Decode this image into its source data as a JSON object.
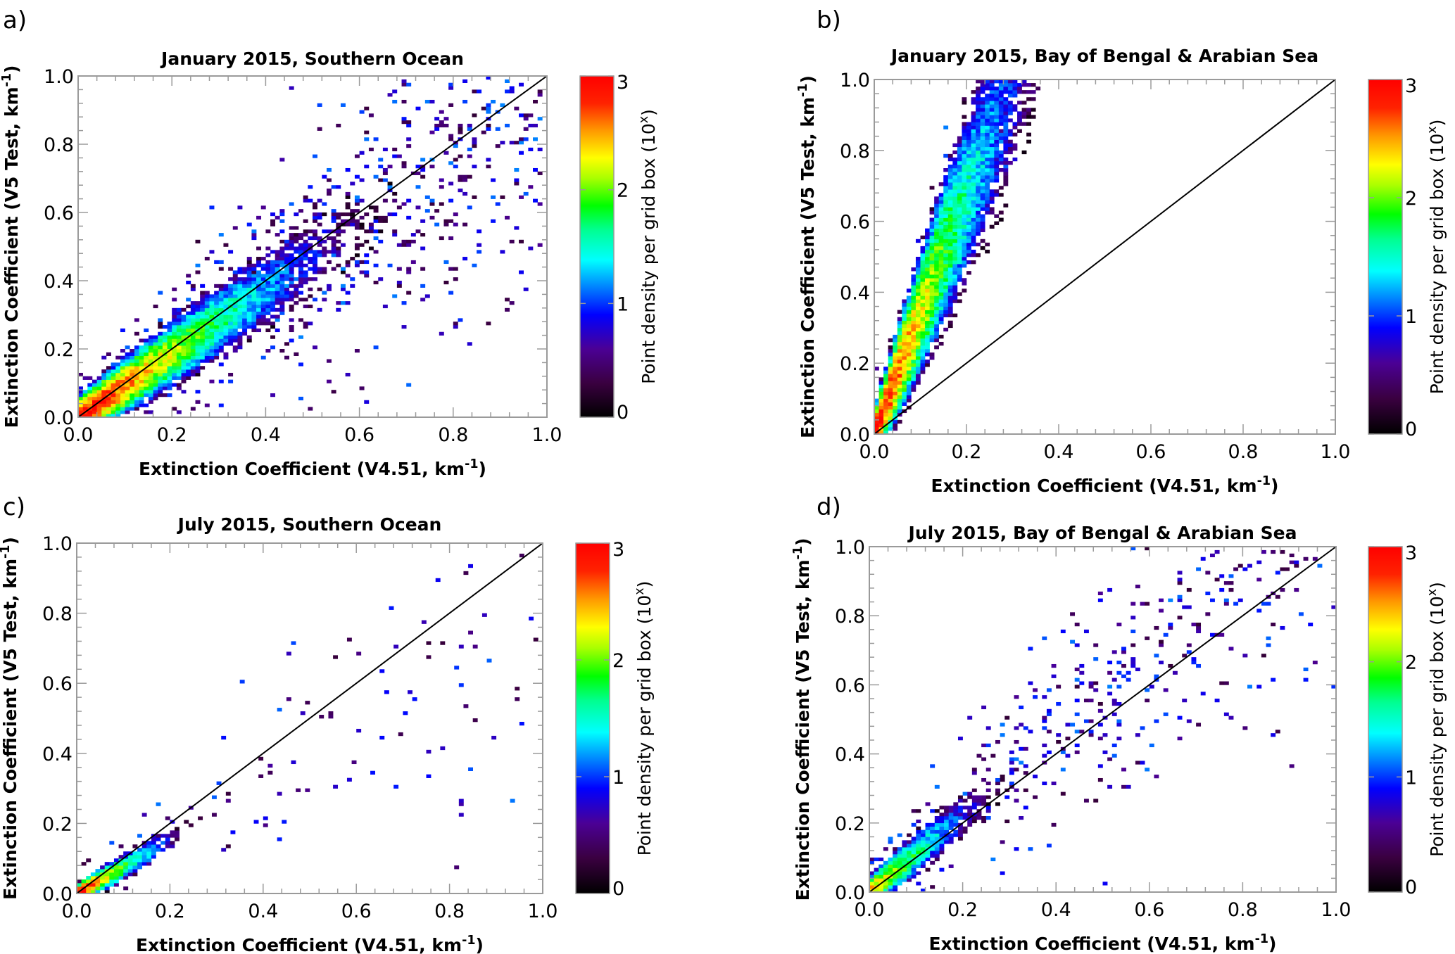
{
  "chart_data": [
    {
      "type": "heatmap",
      "panel_label": "a)",
      "title": "January 2015, Southern Ocean",
      "xlabel": "Extinction Coefficient (V4.51, km",
      "xlabel_sup": "-1",
      "xlabel_tail": ")",
      "ylabel": "Extinction Coefficient  (V5 Test, km",
      "ylabel_sup": "-1",
      "ylabel_tail": ")",
      "xlim": [
        0.0,
        1.0
      ],
      "ylim": [
        0.0,
        1.0
      ],
      "xticks": [
        "0.0",
        "0.2",
        "0.4",
        "0.6",
        "0.8",
        "1.0"
      ],
      "yticks": [
        "0.0",
        "0.2",
        "0.4",
        "0.6",
        "0.8",
        "1.0"
      ],
      "reference_line": "1:1",
      "bins": 100,
      "distribution": {
        "slope": 0.97,
        "spread": 0.045,
        "spread_growth": 0.16,
        "peak_log_density": 3.0,
        "decay": 3.2,
        "x_max": 1.0,
        "outliers": 900,
        "seed": 11
      },
      "colorbar": {
        "label": "Point density per grid box (10",
        "label_sup": "x",
        "label_tail": ")",
        "range": [
          0,
          3
        ],
        "ticks": [
          "0",
          "1",
          "2",
          "3"
        ]
      }
    },
    {
      "type": "heatmap",
      "panel_label": "b)",
      "title": "January 2015, Bay of Bengal & Arabian Sea",
      "xlabel": "Extinction Coefficient (V4.51, km",
      "xlabel_sup": "-1",
      "xlabel_tail": ")",
      "ylabel": "Extinction Coefficient  (V5 Test, km",
      "ylabel_sup": "-1",
      "ylabel_tail": ")",
      "xlim": [
        0.0,
        1.0
      ],
      "ylim": [
        0.0,
        1.0
      ],
      "xticks": [
        "0.0",
        "0.2",
        "0.4",
        "0.6",
        "0.8",
        "1.0"
      ],
      "yticks": [
        "0.0",
        "0.2",
        "0.4",
        "0.6",
        "0.8",
        "1.0"
      ],
      "reference_line": "1:1",
      "bins": 100,
      "distribution": {
        "slope": 3.6,
        "spread": 0.05,
        "spread_growth": 0.38,
        "peak_log_density": 3.0,
        "decay": 2.0,
        "x_max": 0.37,
        "outliers": 380,
        "seed": 23
      },
      "colorbar": {
        "label": "Point density per grid box (10",
        "label_sup": "x",
        "label_tail": ")",
        "range": [
          0,
          3
        ],
        "ticks": [
          "0",
          "1",
          "2",
          "3"
        ]
      }
    },
    {
      "type": "heatmap",
      "panel_label": "c)",
      "title": "July 2015, Southern Ocean",
      "xlabel": "Extinction Coefficient (V4.51, km",
      "xlabel_sup": "-1",
      "xlabel_tail": ")",
      "ylabel": "Extinction Coefficient  (V5 Test, km",
      "ylabel_sup": "-1",
      "ylabel_tail": ")",
      "xlim": [
        0.0,
        1.0
      ],
      "ylim": [
        0.0,
        1.0
      ],
      "xticks": [
        "0.0",
        "0.2",
        "0.4",
        "0.6",
        "0.8",
        "1.0"
      ],
      "yticks": [
        "0.0",
        "0.2",
        "0.4",
        "0.6",
        "0.8",
        "1.0"
      ],
      "reference_line": "1:1",
      "bins": 100,
      "distribution": {
        "slope": 0.78,
        "spread": 0.02,
        "spread_growth": 0.12,
        "peak_log_density": 3.0,
        "decay": 9.0,
        "x_max": 1.0,
        "outliers": 120,
        "seed": 37
      },
      "colorbar": {
        "label": "Point density per grid box (10",
        "label_sup": "x",
        "label_tail": ")",
        "range": [
          0,
          3
        ],
        "ticks": [
          "0",
          "1",
          "2",
          "3"
        ]
      }
    },
    {
      "type": "heatmap",
      "panel_label": "d)",
      "title": "July 2015, Bay of Bengal & Arabian Sea",
      "xlabel": "Extinction Coefficient (V4.51, km",
      "xlabel_sup": "-1",
      "xlabel_tail": ")",
      "ylabel": "Extinction Coefficient  (V5 Test, km",
      "ylabel_sup": "-1",
      "ylabel_tail": ")",
      "xlim": [
        0.0,
        1.0
      ],
      "ylim": [
        0.0,
        1.0
      ],
      "xticks": [
        "0.0",
        "0.2",
        "0.4",
        "0.6",
        "0.8",
        "1.0"
      ],
      "yticks": [
        "0.0",
        "0.2",
        "0.4",
        "0.6",
        "0.8",
        "1.0"
      ],
      "reference_line": "1:1",
      "bins": 100,
      "distribution": {
        "slope": 1.18,
        "spread": 0.035,
        "spread_growth": 0.22,
        "peak_log_density": 2.5,
        "decay": 5.5,
        "x_max": 1.0,
        "outliers": 500,
        "seed": 51
      },
      "colorbar": {
        "label": "Point density per grid box (10",
        "label_sup": "x",
        "label_tail": ")",
        "range": [
          0,
          3
        ],
        "ticks": [
          "0",
          "1",
          "2",
          "3"
        ]
      }
    }
  ]
}
